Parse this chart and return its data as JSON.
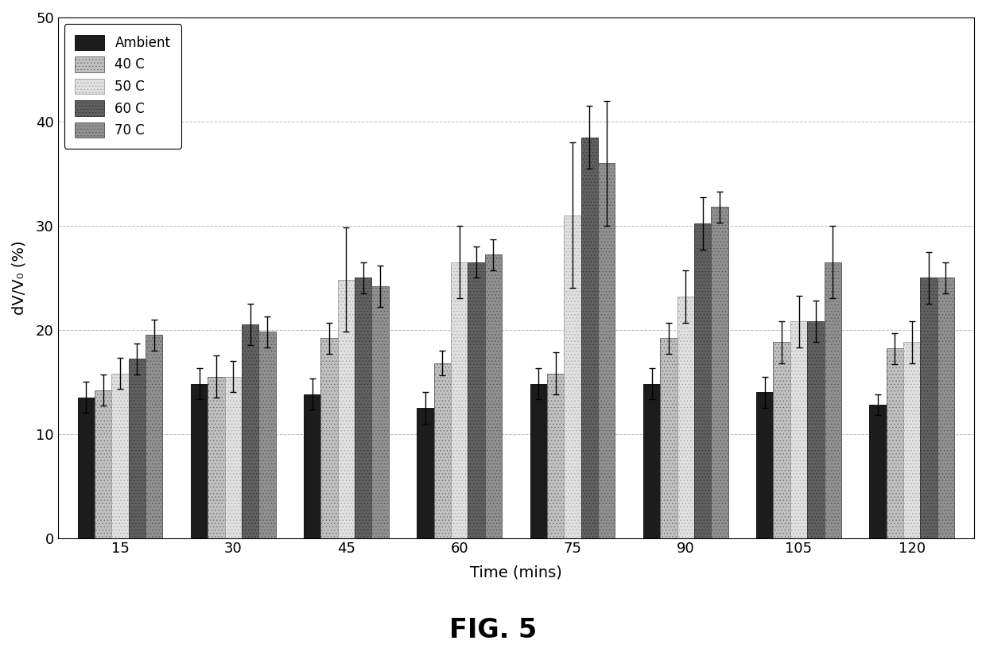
{
  "time_points": [
    15,
    30,
    45,
    60,
    75,
    90,
    105,
    120
  ],
  "series_names": [
    "Ambient",
    "40 C",
    "50 C",
    "60 C",
    "70 C"
  ],
  "values": {
    "Ambient": [
      13.5,
      14.8,
      13.8,
      12.5,
      14.8,
      14.8,
      14.0,
      12.8
    ],
    "40 C": [
      14.2,
      15.5,
      19.2,
      16.8,
      15.8,
      19.2,
      18.8,
      18.2
    ],
    "50 C": [
      15.8,
      15.5,
      24.8,
      26.5,
      31.0,
      23.2,
      20.8,
      18.8
    ],
    "60 C": [
      17.2,
      20.5,
      25.0,
      26.5,
      38.5,
      30.2,
      20.8,
      25.0
    ],
    "70 C": [
      19.5,
      19.8,
      24.2,
      27.2,
      36.0,
      31.8,
      26.5,
      25.0
    ]
  },
  "errors": {
    "Ambient": [
      1.5,
      1.5,
      1.5,
      1.5,
      1.5,
      1.5,
      1.5,
      1.0
    ],
    "40 C": [
      1.5,
      2.0,
      1.5,
      1.2,
      2.0,
      1.5,
      2.0,
      1.5
    ],
    "50 C": [
      1.5,
      1.5,
      5.0,
      3.5,
      7.0,
      2.5,
      2.5,
      2.0
    ],
    "60 C": [
      1.5,
      2.0,
      1.5,
      1.5,
      3.0,
      2.5,
      2.0,
      2.5
    ],
    "70 C": [
      1.5,
      1.5,
      2.0,
      1.5,
      6.0,
      1.5,
      3.5,
      1.5
    ]
  },
  "colors": {
    "Ambient": "#1c1c1c",
    "40 C": "#c0c0c0",
    "50 C": "#e0e0e0",
    "60 C": "#606060",
    "70 C": "#909090"
  },
  "hatches": {
    "Ambient": "",
    "40 C": "....",
    "50 C": "....",
    "60 C": "....",
    "70 C": "...."
  },
  "edge_colors": {
    "Ambient": "#000000",
    "40 C": "#606060",
    "50 C": "#a0a0a0",
    "60 C": "#303030",
    "70 C": "#505050"
  },
  "ylabel": "dV/V₀ (%)",
  "xlabel": "Time (mins)",
  "figure_label": "FIG. 5",
  "ylim": [
    0,
    50
  ],
  "yticks": [
    0,
    10,
    20,
    30,
    40,
    50
  ],
  "bar_width": 0.15,
  "grid_color": "#bbbbbb",
  "figsize": [
    12.4,
    8.25
  ],
  "dpi": 100
}
